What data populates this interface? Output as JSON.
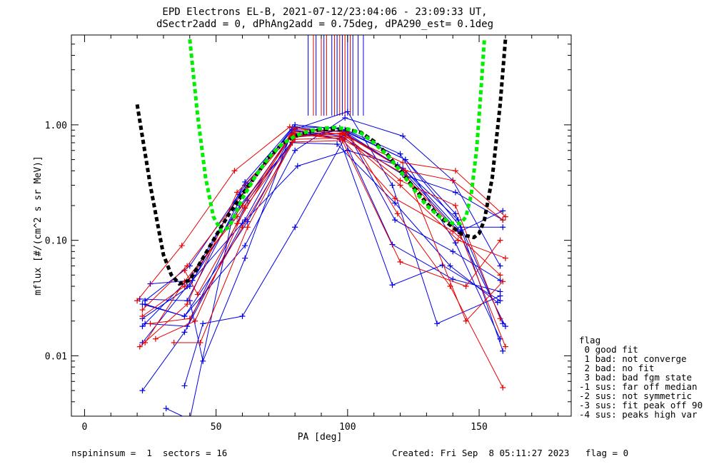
{
  "title_line1": "EPD Electrons EL-B, 2021-07-12/23:04:06 - 23:09:33 UT,",
  "title_line2": "dSectr2add = 0, dPhAng2add = 0.75deg, dPA290_est=   0.1deg",
  "footer_left": "nspininsum =  1  sectors = 16",
  "footer_right": "Created: Fri Sep  8 05:11:27 2023   flag = 0",
  "legend": {
    "heading": "flag",
    "items": [
      " 0 good fit",
      " 1 bad: not converge",
      " 2 bad: no fit",
      " 3 bad: bad fgm state",
      "-1 sus: far off median",
      "-2 sus: not symmetric",
      "-3 sus: fit peak off 90",
      "-4 sus: peaks high var"
    ]
  },
  "colors": {
    "blue": "#0000e6",
    "red": "#e60000",
    "green": "#00ee00",
    "black": "#000000"
  },
  "chart_data": {
    "type": "line",
    "title": "EPD Electrons EL-B, 2021-07-12/23:04:06 - 23:09:33 UT,",
    "subtitle": "dSectr2add = 0, dPhAng2add = 0.75deg, dPA290_est=   0.1deg",
    "xlabel": "PA [deg]",
    "ylabel": "mflux [#/(cm^2 s sr MeV)]",
    "xlim": [
      -5,
      185
    ],
    "ylim": [
      0.003,
      6
    ],
    "yscale": "log",
    "xticks": [
      0,
      50,
      100,
      150
    ],
    "xtick_labels": [
      "0",
      "50",
      "100",
      "150"
    ],
    "yticks": [
      0.01,
      0.1,
      1.0
    ],
    "ytick_labels": [
      "0.01",
      "0.10",
      "1.00"
    ],
    "grid": false,
    "legend_position": "bottom-right outside",
    "series": [
      {
        "color": "blue",
        "x": [
          21,
          39,
          62,
          80,
          97,
          122,
          141,
          159
        ],
        "y": [
          0.031,
          0.03,
          0.3,
          1.0,
          0.92,
          0.5,
          0.17,
          0.019
        ]
      },
      {
        "color": "blue",
        "x": [
          22,
          40,
          61,
          79,
          98,
          121,
          142,
          159
        ],
        "y": [
          0.021,
          0.04,
          0.32,
          0.95,
          0.87,
          0.42,
          0.15,
          0.011
        ]
      },
      {
        "color": "blue",
        "x": [
          23,
          39,
          62,
          80,
          99,
          120,
          141,
          158
        ],
        "y": [
          0.019,
          0.018,
          0.22,
          0.78,
          0.91,
          0.56,
          0.095,
          0.014
        ]
      },
      {
        "color": "blue",
        "x": [
          22,
          38,
          60,
          81,
          100,
          119,
          142,
          160
        ],
        "y": [
          0.005,
          0.016,
          0.14,
          0.44,
          0.6,
          0.45,
          0.12,
          0.018
        ]
      },
      {
        "color": "blue",
        "x": [
          25,
          41,
          59,
          79,
          96,
          118,
          139,
          157
        ],
        "y": [
          0.042,
          0.045,
          0.2,
          0.7,
          0.68,
          0.21,
          0.06,
          0.029
        ]
      },
      {
        "color": "blue",
        "x": [
          22,
          38,
          61,
          80,
          99,
          121,
          140,
          158
        ],
        "y": [
          0.028,
          0.022,
          0.09,
          0.6,
          1.15,
          0.8,
          0.33,
          0.06
        ]
      },
      {
        "color": "blue",
        "x": [
          22,
          39,
          61,
          80,
          100,
          117,
          134,
          158
        ],
        "y": [
          0.013,
          0.04,
          0.15,
          0.92,
          1.3,
          0.3,
          0.019,
          0.033
        ]
      },
      {
        "color": "blue",
        "x": [
          31,
          40,
          56,
          79,
          98,
          121,
          141,
          159
        ],
        "y": [
          0.0035,
          0.0028,
          0.15,
          0.85,
          0.78,
          0.37,
          0.26,
          0.15
        ]
      },
      {
        "color": "blue",
        "x": [
          38,
          45,
          60,
          80,
          100,
          118,
          140,
          158
        ],
        "y": [
          0.0055,
          0.019,
          0.022,
          0.13,
          0.85,
          0.15,
          0.08,
          0.045
        ]
      },
      {
        "color": "blue",
        "x": [
          40,
          45,
          61,
          79,
          98,
          117,
          140,
          158
        ],
        "y": [
          0.03,
          0.009,
          0.07,
          0.9,
          0.8,
          0.092,
          0.046,
          0.036
        ]
      },
      {
        "color": "blue",
        "x": [
          22,
          41,
          59,
          80,
          97,
          122,
          143,
          159
        ],
        "y": [
          0.018,
          0.05,
          0.25,
          0.96,
          0.94,
          0.5,
          0.13,
          0.13
        ]
      },
      {
        "color": "blue",
        "x": [
          23,
          40,
          61,
          79,
          97,
          117,
          136,
          158
        ],
        "y": [
          0.03,
          0.06,
          0.3,
          0.9,
          0.75,
          0.041,
          0.061,
          0.03
        ]
      },
      {
        "color": "blue",
        "x": [
          23,
          38,
          62,
          80,
          98,
          122,
          143,
          159
        ],
        "y": [
          0.028,
          0.022,
          0.145,
          0.8,
          0.9,
          0.4,
          0.12,
          0.18
        ]
      },
      {
        "color": "red",
        "x": [
          20,
          37,
          57,
          78,
          98,
          121,
          141,
          160
        ],
        "y": [
          0.03,
          0.09,
          0.4,
          0.96,
          0.82,
          0.47,
          0.4,
          0.16
        ]
      },
      {
        "color": "red",
        "x": [
          21,
          39,
          58,
          80,
          99,
          122,
          140,
          159
        ],
        "y": [
          0.012,
          0.028,
          0.26,
          0.87,
          0.83,
          0.4,
          0.33,
          0.15
        ]
      },
      {
        "color": "red",
        "x": [
          22,
          38,
          60,
          79,
          98,
          121,
          143,
          160
        ],
        "y": [
          0.022,
          0.04,
          0.2,
          0.84,
          0.75,
          0.38,
          0.11,
          0.012
        ]
      },
      {
        "color": "red",
        "x": [
          22,
          39,
          62,
          80,
          100,
          119,
          139,
          159
        ],
        "y": [
          0.025,
          0.06,
          0.29,
          0.91,
          0.87,
          0.17,
          0.04,
          0.0053
        ]
      },
      {
        "color": "red",
        "x": [
          23,
          38,
          58,
          79,
          97,
          118,
          140,
          158
        ],
        "y": [
          0.013,
          0.044,
          0.16,
          0.82,
          0.79,
          0.23,
          0.12,
          0.05
        ]
      },
      {
        "color": "red",
        "x": [
          25,
          40,
          60,
          80,
          99,
          120,
          142,
          160
        ],
        "y": [
          0.019,
          0.021,
          0.13,
          0.75,
          0.77,
          0.3,
          0.1,
          0.07
        ]
      },
      {
        "color": "red",
        "x": [
          27,
          42,
          61,
          79,
          98,
          120,
          145,
          158
        ],
        "y": [
          0.014,
          0.02,
          0.19,
          0.71,
          0.73,
          0.065,
          0.04,
          0.1
        ]
      },
      {
        "color": "red",
        "x": [
          34,
          44,
          62,
          80,
          98,
          122,
          145,
          159
        ],
        "y": [
          0.013,
          0.013,
          0.13,
          0.78,
          0.85,
          0.4,
          0.02,
          0.044
        ]
      },
      {
        "color": "red",
        "x": [
          38,
          43,
          58,
          78,
          98,
          120,
          141,
          158
        ],
        "y": [
          0.055,
          0.034,
          0.14,
          0.8,
          0.84,
          0.33,
          0.2,
          0.021
        ]
      }
    ],
    "vertical_marker_lines": {
      "blue_x": [
        85,
        88,
        91,
        94,
        96,
        98,
        100,
        102,
        104,
        106
      ],
      "red_x": [
        87,
        90,
        92,
        95,
        97,
        99,
        101
      ],
      "y_bottom": 1.2
    },
    "fits": [
      {
        "color": "black",
        "style": "dashed",
        "x": [
          20,
          25,
          30,
          33,
          36,
          40,
          45,
          50,
          55,
          60,
          65,
          70,
          75,
          80,
          85,
          90,
          95,
          100,
          105,
          110,
          115,
          120,
          125,
          130,
          135,
          140,
          143,
          145,
          148,
          150,
          152,
          155,
          158,
          160
        ],
        "y": [
          1.5,
          0.3,
          0.075,
          0.05,
          0.042,
          0.045,
          0.07,
          0.11,
          0.17,
          0.25,
          0.36,
          0.52,
          0.68,
          0.8,
          0.87,
          0.91,
          0.92,
          0.91,
          0.86,
          0.72,
          0.56,
          0.4,
          0.29,
          0.21,
          0.16,
          0.13,
          0.115,
          0.11,
          0.106,
          0.115,
          0.15,
          0.35,
          1.5,
          5.5
        ]
      },
      {
        "color": "green",
        "style": "dashed",
        "x": [
          40,
          43,
          46,
          49,
          52,
          55,
          60,
          65,
          70,
          75,
          80,
          85,
          90,
          95,
          100,
          105,
          110,
          115,
          120,
          125,
          130,
          135,
          140,
          143,
          145,
          147,
          149,
          150,
          151,
          152
        ],
        "y": [
          5.5,
          1.2,
          0.35,
          0.16,
          0.12,
          0.13,
          0.23,
          0.36,
          0.52,
          0.68,
          0.8,
          0.88,
          0.93,
          0.95,
          0.92,
          0.85,
          0.7,
          0.55,
          0.4,
          0.28,
          0.2,
          0.16,
          0.14,
          0.14,
          0.16,
          0.25,
          0.6,
          1.2,
          2.5,
          5.5
        ]
      }
    ]
  }
}
